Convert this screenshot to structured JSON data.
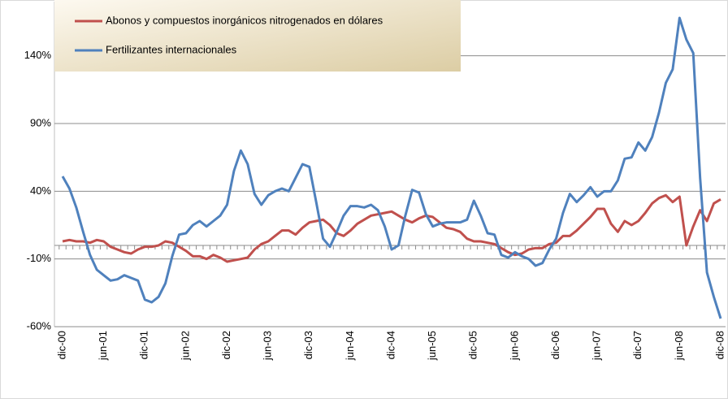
{
  "chart_data": {
    "type": "line",
    "categories": [
      "dic-00",
      null,
      null,
      null,
      null,
      null,
      "jun-01",
      null,
      null,
      null,
      null,
      null,
      "dic-01",
      null,
      null,
      null,
      null,
      null,
      "jun-02",
      null,
      null,
      null,
      null,
      null,
      "dic-02",
      null,
      null,
      null,
      null,
      null,
      "jun-03",
      null,
      null,
      null,
      null,
      null,
      "dic-03",
      null,
      null,
      null,
      null,
      null,
      "jun-04",
      null,
      null,
      null,
      null,
      null,
      "dic-04",
      null,
      null,
      null,
      null,
      null,
      "jun-05",
      null,
      null,
      null,
      null,
      null,
      "dic-05",
      null,
      null,
      null,
      null,
      null,
      "jun-06",
      null,
      null,
      null,
      null,
      null,
      "dic-06",
      null,
      null,
      null,
      null,
      null,
      "jun-07",
      null,
      null,
      null,
      null,
      null,
      "dic-07",
      null,
      null,
      null,
      null,
      null,
      "jun-08",
      null,
      null,
      null,
      null,
      null,
      "dic-08"
    ],
    "series": [
      {
        "name": "Abonos y compuestos inorgánicos nitrogenados en dólares",
        "color": "#c0504d",
        "values": [
          3,
          4,
          3,
          3,
          2,
          4,
          3,
          -1,
          -3,
          -5,
          -6,
          -3,
          -1,
          -1,
          0,
          3,
          2,
          -1,
          -4,
          -8,
          -8,
          -10,
          -7,
          -9,
          -12,
          -11,
          -10,
          -9,
          -3,
          1,
          3,
          7,
          11,
          11,
          8,
          13,
          17,
          18,
          19,
          15,
          9,
          7,
          11,
          16,
          19,
          22,
          23,
          24,
          25,
          22,
          19,
          17,
          20,
          22,
          21,
          17,
          13,
          12,
          10,
          5,
          3,
          3,
          2,
          1,
          -2,
          -5,
          -7,
          -6,
          -3,
          -2,
          -2,
          1,
          2,
          7,
          7,
          11,
          16,
          21,
          27,
          27,
          16,
          10,
          18,
          15,
          18,
          24,
          31,
          35,
          37,
          32,
          36,
          0,
          14,
          26,
          18,
          31,
          34
        ]
      },
      {
        "name": "Fertilizantes internacionales",
        "color": "#4f81bd",
        "values": [
          51,
          42,
          28,
          10,
          -7,
          -18,
          -22,
          -26,
          -25,
          -22,
          -24,
          -26,
          -40,
          -42,
          -38,
          -28,
          -8,
          8,
          9,
          15,
          18,
          14,
          18,
          22,
          30,
          55,
          70,
          60,
          38,
          30,
          37,
          40,
          42,
          40,
          50,
          60,
          58,
          32,
          5,
          -1,
          10,
          22,
          29,
          29,
          28,
          30,
          26,
          14,
          -3,
          0,
          22,
          41,
          39,
          23,
          14,
          16,
          17,
          17,
          17,
          19,
          33,
          22,
          9,
          8,
          -7,
          -9,
          -5,
          -8,
          -10,
          -15,
          -13,
          -3,
          5,
          24,
          38,
          32,
          37,
          43,
          36,
          40,
          40,
          48,
          64,
          65,
          76,
          70,
          80,
          98,
          120,
          130,
          168,
          152,
          142,
          50,
          -20,
          -38,
          -54
        ]
      }
    ],
    "ylim": [
      -60,
      180
    ],
    "yticks": [
      {
        "value": -60,
        "label": "-60%"
      },
      {
        "value": -10,
        "label": "-10%"
      },
      {
        "value": 40,
        "label": "40%"
      },
      {
        "value": 90,
        "label": "90%"
      },
      {
        "value": 140,
        "label": "140%"
      }
    ],
    "grid": true,
    "legend": "top-left"
  }
}
